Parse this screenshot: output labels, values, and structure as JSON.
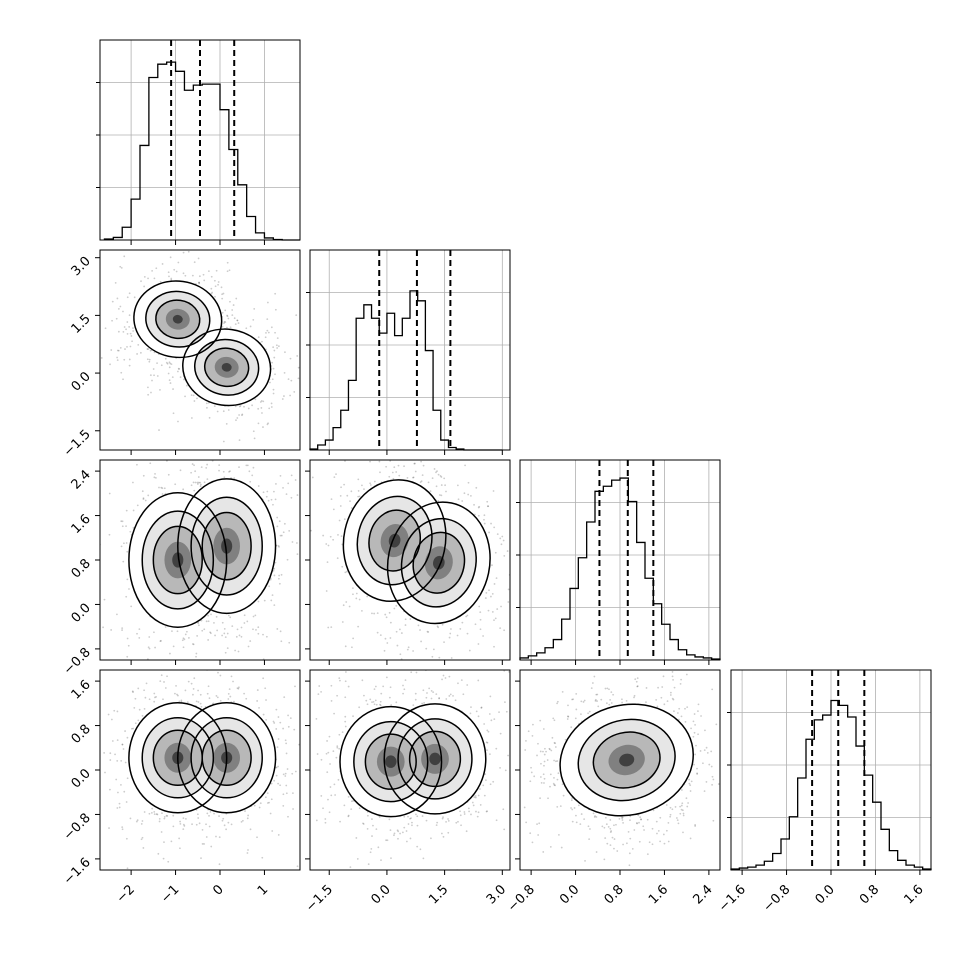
{
  "chart_data": {
    "type": "corner",
    "parameters": [
      {
        "ticks": [
          -2,
          -1,
          0,
          1
        ],
        "tick_labels": [
          "−2",
          "−1",
          "0",
          "1"
        ],
        "range": [
          -2.7,
          1.8
        ],
        "hist": {
          "bins": [
            -2.6,
            -2.4,
            -2.2,
            -2.0,
            -1.8,
            -1.6,
            -1.4,
            -1.2,
            -1.0,
            -0.8,
            -0.6,
            -0.4,
            -0.2,
            0.0,
            0.2,
            0.4,
            0.6,
            0.8,
            1.0,
            1.2,
            1.4,
            1.6,
            1.8
          ],
          "counts": [
            2,
            5,
            25,
            80,
            185,
            318,
            344,
            348,
            330,
            293,
            303,
            305,
            305,
            255,
            177,
            108,
            46,
            14,
            4,
            1,
            0,
            0
          ],
          "ymax": 360
        },
        "quantiles": [
          -1.1,
          -0.45,
          0.32
        ]
      },
      {
        "ticks": [
          -1.5,
          0.0,
          1.5,
          3.0
        ],
        "tick_labels": [
          "−1.5",
          "0.0",
          "1.5",
          "3.0"
        ],
        "range": [
          -2.0,
          3.2
        ],
        "hist": {
          "bins": [
            -2.0,
            -1.8,
            -1.6,
            -1.4,
            -1.2,
            -1.0,
            -0.8,
            -0.6,
            -0.4,
            -0.2,
            0.0,
            0.2,
            0.4,
            0.6,
            0.8,
            1.0,
            1.2,
            1.4,
            1.6,
            1.8,
            2.0,
            2.2,
            2.4,
            2.6,
            2.8,
            3.0
          ],
          "counts": [
            2,
            10,
            20,
            45,
            80,
            140,
            265,
            292,
            265,
            235,
            275,
            230,
            265,
            320,
            300,
            200,
            80,
            20,
            5,
            2,
            0,
            0,
            0,
            0,
            0
          ],
          "ymax": 370
        },
        "quantiles": [
          -0.2,
          0.78,
          1.65
        ]
      },
      {
        "ticks": [
          -0.8,
          0.0,
          0.8,
          1.6,
          2.4
        ],
        "tick_labels": [
          "−0.8",
          "0.0",
          "0.8",
          "1.6",
          "2.4"
        ],
        "range": [
          -1.0,
          2.6
        ],
        "hist": {
          "bins": [
            -1.0,
            -0.85,
            -0.7,
            -0.55,
            -0.4,
            -0.25,
            -0.1,
            0.05,
            0.2,
            0.35,
            0.5,
            0.65,
            0.8,
            0.95,
            1.1,
            1.25,
            1.4,
            1.55,
            1.7,
            1.85,
            2.0,
            2.15,
            2.3,
            2.45,
            2.6
          ],
          "counts": [
            2,
            4,
            7,
            12,
            20,
            40,
            70,
            100,
            135,
            165,
            170,
            176,
            178,
            155,
            115,
            80,
            55,
            35,
            20,
            10,
            5,
            3,
            2,
            1
          ],
          "ymax": 180
        },
        "quantiles": [
          0.43,
          0.94,
          1.4
        ]
      },
      {
        "ticks": [
          -1.6,
          -0.8,
          0.0,
          0.8,
          1.6
        ],
        "tick_labels": [
          "−1.6",
          "−0.8",
          "0.0",
          "0.8",
          "1.6"
        ],
        "range": [
          -1.8,
          1.8
        ],
        "hist": {
          "bins": [
            -1.8,
            -1.65,
            -1.5,
            -1.35,
            -1.2,
            -1.05,
            -0.9,
            -0.75,
            -0.6,
            -0.45,
            -0.3,
            -0.15,
            0.0,
            0.15,
            0.3,
            0.45,
            0.6,
            0.75,
            0.9,
            1.05,
            1.2,
            1.35,
            1.5,
            1.65,
            1.8
          ],
          "counts": [
            1,
            2,
            3,
            5,
            9,
            17,
            32,
            55,
            95,
            135,
            155,
            160,
            175,
            170,
            158,
            128,
            98,
            70,
            42,
            20,
            10,
            5,
            3,
            1
          ],
          "ymax": 190
        },
        "quantiles": [
          -0.34,
          0.13,
          0.6
        ]
      }
    ],
    "pairs": [
      {
        "x": 0,
        "y": 1,
        "centers": [
          [
            -0.95,
            1.4,
            1.0
          ],
          [
            0.15,
            0.15,
            1.0
          ]
        ],
        "spread": [
          0.45,
          0.45
        ],
        "rotate": -0.2
      },
      {
        "x": 0,
        "y": 2,
        "centers": [
          [
            -0.95,
            0.8,
            1.0
          ],
          [
            0.15,
            1.05,
            1.0
          ]
        ],
        "spread": [
          0.5,
          0.55
        ],
        "rotate": 0.0
      },
      {
        "x": 1,
        "y": 2,
        "centers": [
          [
            0.2,
            1.15,
            1.0
          ],
          [
            1.35,
            0.75,
            1.0
          ]
        ],
        "spread": [
          0.6,
          0.5
        ],
        "rotate": -0.3
      },
      {
        "x": 0,
        "y": 3,
        "centers": [
          [
            -0.95,
            0.22,
            1.0
          ],
          [
            0.15,
            0.22,
            1.0
          ]
        ],
        "spread": [
          0.5,
          0.45
        ],
        "rotate": 0.0
      },
      {
        "x": 1,
        "y": 3,
        "centers": [
          [
            0.1,
            0.15,
            1.0
          ],
          [
            1.25,
            0.2,
            1.0
          ]
        ],
        "spread": [
          0.6,
          0.45
        ],
        "rotate": 0.0
      },
      {
        "x": 2,
        "y": 3,
        "centers": [
          [
            0.92,
            0.18,
            1.0
          ]
        ],
        "spread": [
          0.55,
          0.45
        ],
        "rotate": 0.35
      }
    ]
  }
}
